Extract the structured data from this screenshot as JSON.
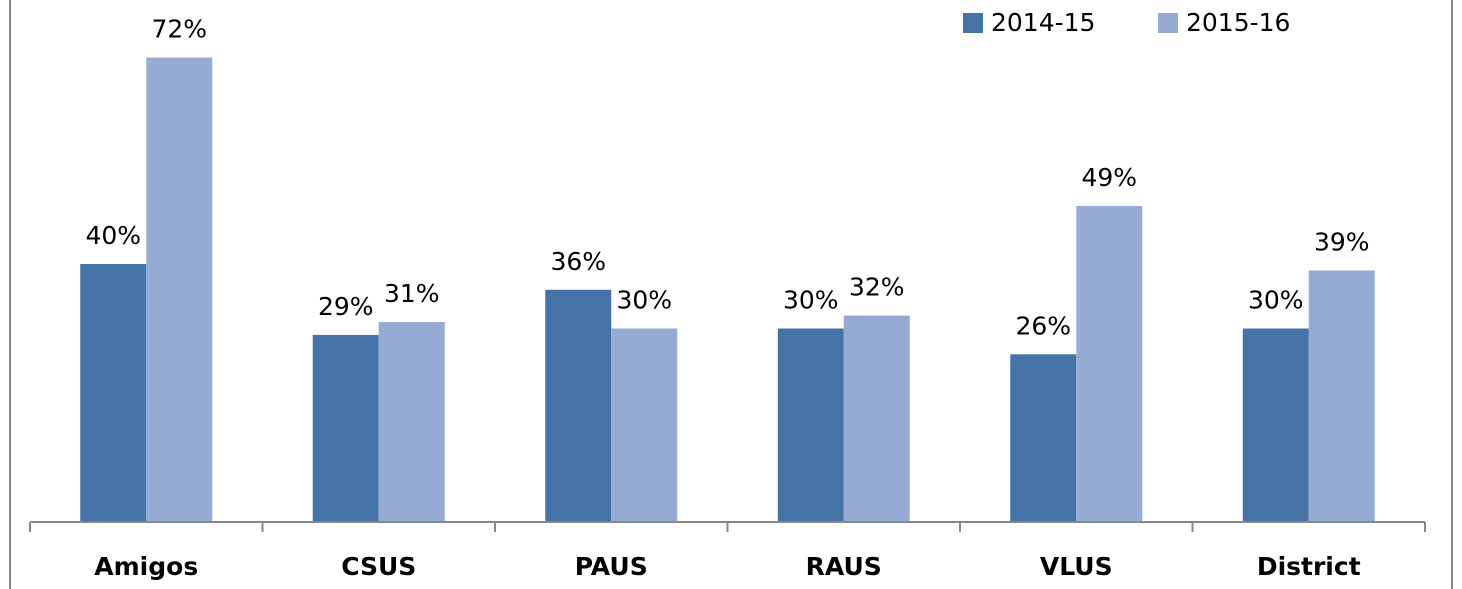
{
  "chart_data": {
    "type": "bar",
    "categories": [
      "Amigos",
      "CSUS",
      "PAUS",
      "RAUS",
      "VLUS",
      "District"
    ],
    "series": [
      {
        "name": "2014-15",
        "color": "#4572a7",
        "values": [
          40,
          29,
          36,
          30,
          26,
          30
        ],
        "value_labels": [
          "40%",
          "29%",
          "36%",
          "30%",
          "26%",
          "30%"
        ]
      },
      {
        "name": "2015-16",
        "color": "#95abd3",
        "values": [
          72,
          31,
          30,
          32,
          49,
          39
        ],
        "value_labels": [
          "72%",
          "31%",
          "30%",
          "32%",
          "49%",
          "39%"
        ]
      }
    ],
    "ylim": [
      0,
      80
    ],
    "legend": "top-right"
  }
}
